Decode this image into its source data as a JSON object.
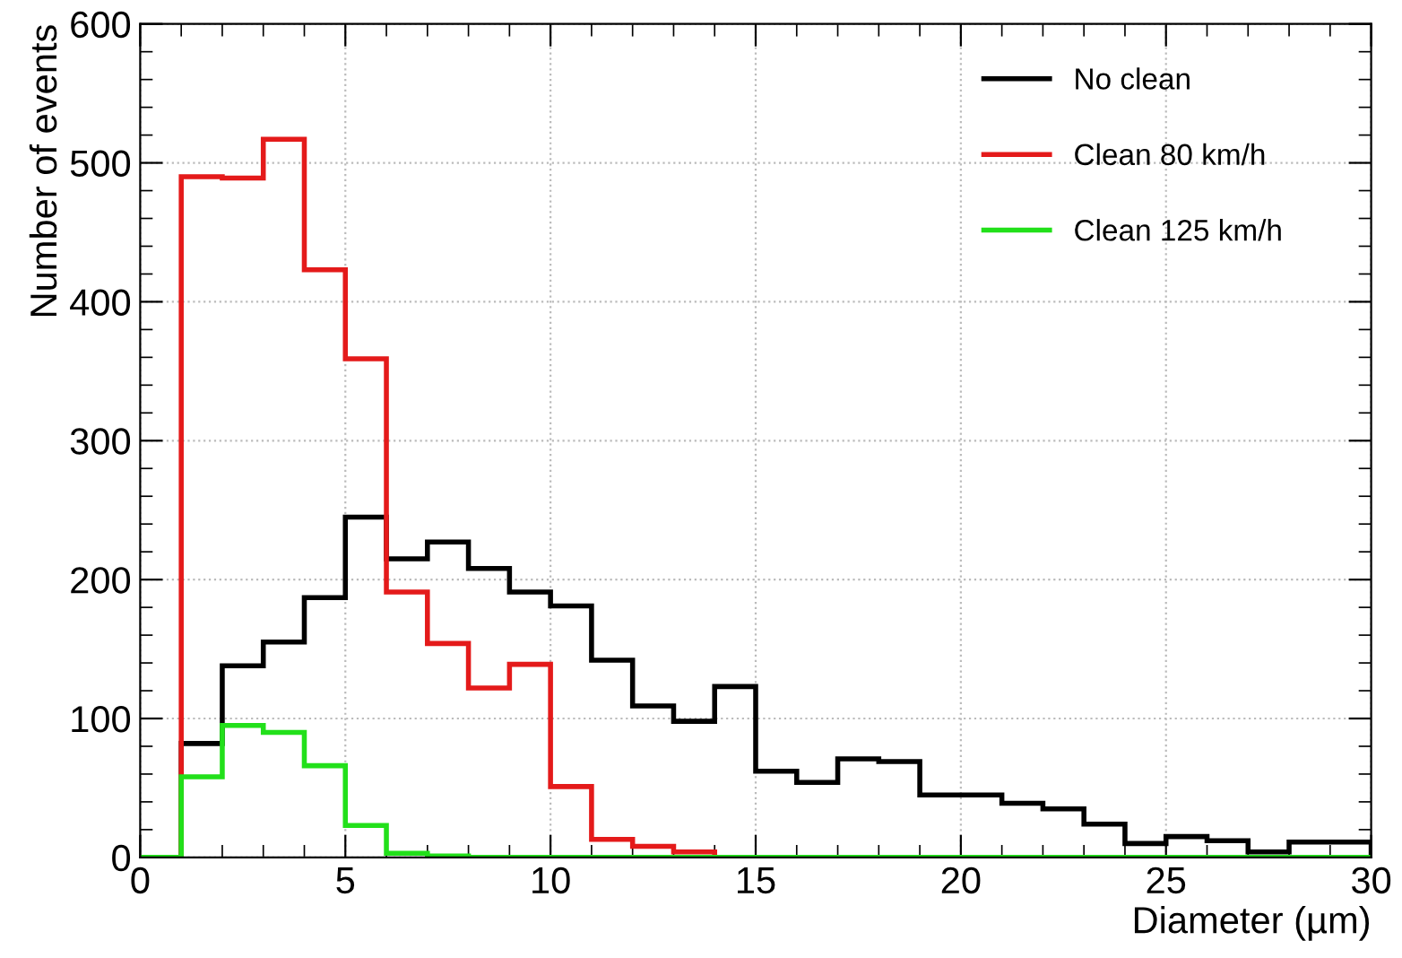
{
  "chart_data": {
    "type": "histogram",
    "xlabel": "Diameter (µm)",
    "ylabel": "Number of events",
    "bins": [
      0,
      1,
      2,
      3,
      4,
      5,
      6,
      7,
      8,
      9,
      10,
      11,
      12,
      13,
      14,
      15,
      16,
      17,
      18,
      19,
      20,
      21,
      22,
      23,
      24,
      25,
      26,
      27,
      28,
      29,
      30
    ],
    "series": [
      {
        "name": "No clean",
        "color": "#000000",
        "values": [
          0,
          82,
          138,
          155,
          187,
          245,
          215,
          227,
          208,
          191,
          181,
          142,
          109,
          98,
          123,
          62,
          54,
          71,
          69,
          45,
          45,
          39,
          35,
          24,
          10,
          15,
          12,
          4,
          11,
          11
        ]
      },
      {
        "name": "Clean 80 km/h",
        "color": "#e41a1a",
        "values": [
          0,
          490,
          489,
          517,
          423,
          359,
          191,
          154,
          122,
          139,
          51,
          13,
          8,
          4,
          0,
          0,
          0,
          0,
          0,
          0,
          0,
          0,
          0,
          0,
          0,
          0,
          0,
          0,
          0,
          0
        ]
      },
      {
        "name": "Clean 125 km/h",
        "color": "#22e01a",
        "values": [
          0,
          58,
          95,
          90,
          66,
          23,
          3,
          1,
          0,
          0,
          0,
          0,
          0,
          0,
          0,
          0,
          0,
          0,
          0,
          0,
          0,
          0,
          0,
          0,
          0,
          0,
          0,
          0,
          0,
          0
        ]
      }
    ],
    "xlim": [
      0,
      30
    ],
    "xticks": [
      0,
      5,
      10,
      15,
      20,
      25,
      30
    ],
    "ylim": [
      0,
      600
    ],
    "yticks": [
      0,
      100,
      200,
      300,
      400,
      500,
      600
    ],
    "grid": true,
    "legend": "top right"
  }
}
